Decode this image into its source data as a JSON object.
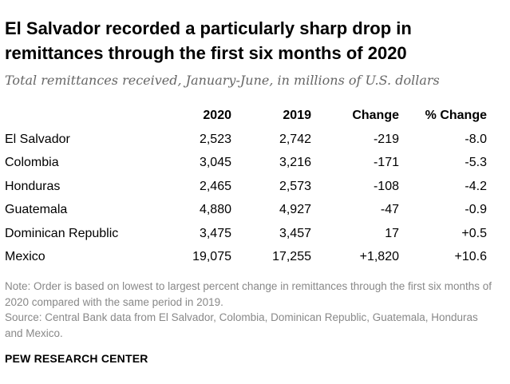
{
  "chart_data": {
    "type": "table",
    "title": "El Salvador recorded a particularly sharp drop in remittances through the first six months of 2020",
    "subtitle": "Total remittances received, January-June, in millions of U.S. dollars",
    "columns": [
      "",
      "2020",
      "2019",
      "Change",
      "% Change"
    ],
    "rows": [
      {
        "country": "El Salvador",
        "y2020": "2,523",
        "y2019": "2,742",
        "change": "-219",
        "pct_change": "-8.0"
      },
      {
        "country": "Colombia",
        "y2020": "3,045",
        "y2019": "3,216",
        "change": "-171",
        "pct_change": "-5.3"
      },
      {
        "country": "Honduras",
        "y2020": "2,465",
        "y2019": "2,573",
        "change": "-108",
        "pct_change": "-4.2"
      },
      {
        "country": "Guatemala",
        "y2020": "4,880",
        "y2019": "4,927",
        "change": "-47",
        "pct_change": "-0.9"
      },
      {
        "country": "Dominican Republic",
        "y2020": "3,475",
        "y2019": "3,457",
        "change": "17",
        "pct_change": "+0.5"
      },
      {
        "country": "Mexico",
        "y2020": "19,075",
        "y2019": "17,255",
        "change": "+1,820",
        "pct_change": "+10.6"
      }
    ]
  },
  "note": "Note: Order is based on lowest to largest percent change in remittances through the first six months of 2020 compared with the same period in 2019.",
  "source": "Source: Central Bank data from El Salvador, Colombia, Dominican Republic, Guatemala, Honduras and Mexico.",
  "footer": "PEW RESEARCH CENTER"
}
